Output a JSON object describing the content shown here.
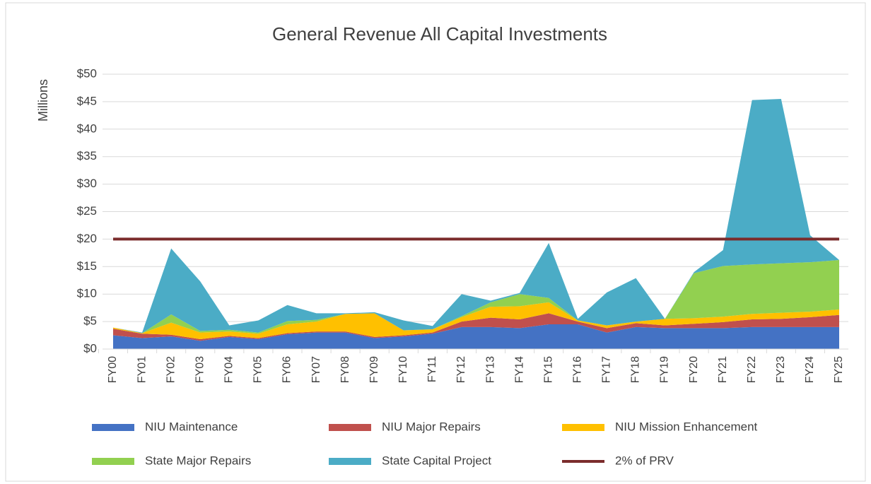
{
  "chart_data": {
    "type": "stacked_area",
    "title": "General Revenue All Capital Investments",
    "y_label": "Millions",
    "categories": [
      "FY00",
      "FY01",
      "FY02",
      "FY03",
      "FY04",
      "FY05",
      "FY06",
      "FY07",
      "FY08",
      "FY09",
      "FY10",
      "FY11",
      "FY12",
      "FY13",
      "FY14",
      "FY15",
      "FY16",
      "FY17",
      "FY18",
      "FY19",
      "FY20",
      "FY21",
      "FY22",
      "FY23",
      "FY24",
      "FY25"
    ],
    "series": [
      {
        "name": "NIU Maintenance",
        "color": "#4472c4",
        "values": [
          2.5,
          2,
          2.3,
          1.5,
          2.2,
          1.8,
          2.7,
          3,
          3,
          2,
          2.3,
          2.8,
          4,
          4,
          3.8,
          4.5,
          4.5,
          3,
          4,
          3.8,
          3.8,
          3.8,
          4,
          4,
          4,
          4
        ]
      },
      {
        "name": "NIU Major Repairs",
        "color": "#c0504d",
        "values": [
          1.2,
          0.8,
          0.3,
          0.3,
          0.2,
          0.2,
          0.2,
          0.2,
          0.2,
          0.2,
          0.2,
          0.2,
          1,
          1.7,
          1.6,
          2,
          0.5,
          0.8,
          0.7,
          0.5,
          0.8,
          1.1,
          1.4,
          1.5,
          1.8,
          2.2
        ]
      },
      {
        "name": "NIU Mission Enhancement",
        "color": "#ffc000",
        "values": [
          0.2,
          0.1,
          2.2,
          1.2,
          0.8,
          0.8,
          1.6,
          1.8,
          3.2,
          4.3,
          0.9,
          0.6,
          0.8,
          2,
          2.4,
          2,
          0.2,
          0.5,
          0.3,
          1.2,
          1,
          1,
          1,
          1.1,
          1,
          1
        ]
      },
      {
        "name": "State Major Repairs",
        "color": "#92d050",
        "values": [
          0,
          0,
          1.5,
          0.3,
          0.3,
          0.2,
          0.6,
          0.3,
          0,
          0,
          0,
          0,
          0.2,
          0.8,
          2.2,
          0.8,
          0,
          0,
          0,
          0,
          8.2,
          9.2,
          9,
          9,
          9,
          9
        ]
      },
      {
        "name": "State Capital Project",
        "color": "#4bacc6",
        "values": [
          0,
          0.1,
          12,
          9,
          0.8,
          2.2,
          2.9,
          1.2,
          0.1,
          0.2,
          1.8,
          0.6,
          4,
          0.3,
          0.2,
          10,
          0.3,
          6,
          7.9,
          0,
          0.2,
          2.9,
          29.9,
          29.9,
          4.9,
          0
        ]
      },
      {
        "name": "2% of PRV",
        "color": "#7b2c2c",
        "kind": "line",
        "values": [
          20,
          20,
          20,
          20,
          20,
          20,
          20,
          20,
          20,
          20,
          20,
          20,
          20,
          20,
          20,
          20,
          20,
          20,
          20,
          20,
          20,
          20,
          20,
          20,
          20,
          20
        ]
      }
    ],
    "ylim": [
      0,
      50
    ],
    "yticks": [
      {
        "value": 0,
        "label": "$0"
      },
      {
        "value": 5,
        "label": "$5"
      },
      {
        "value": 10,
        "label": "$10"
      },
      {
        "value": 15,
        "label": "$15"
      },
      {
        "value": 20,
        "label": "$20"
      },
      {
        "value": 25,
        "label": "$25"
      },
      {
        "value": 30,
        "label": "$30"
      },
      {
        "value": 35,
        "label": "$35"
      },
      {
        "value": 40,
        "label": "$40"
      },
      {
        "value": 45,
        "label": "$45"
      },
      {
        "value": 50,
        "label": "$50"
      }
    ],
    "grid": true,
    "legend": "bottom"
  }
}
